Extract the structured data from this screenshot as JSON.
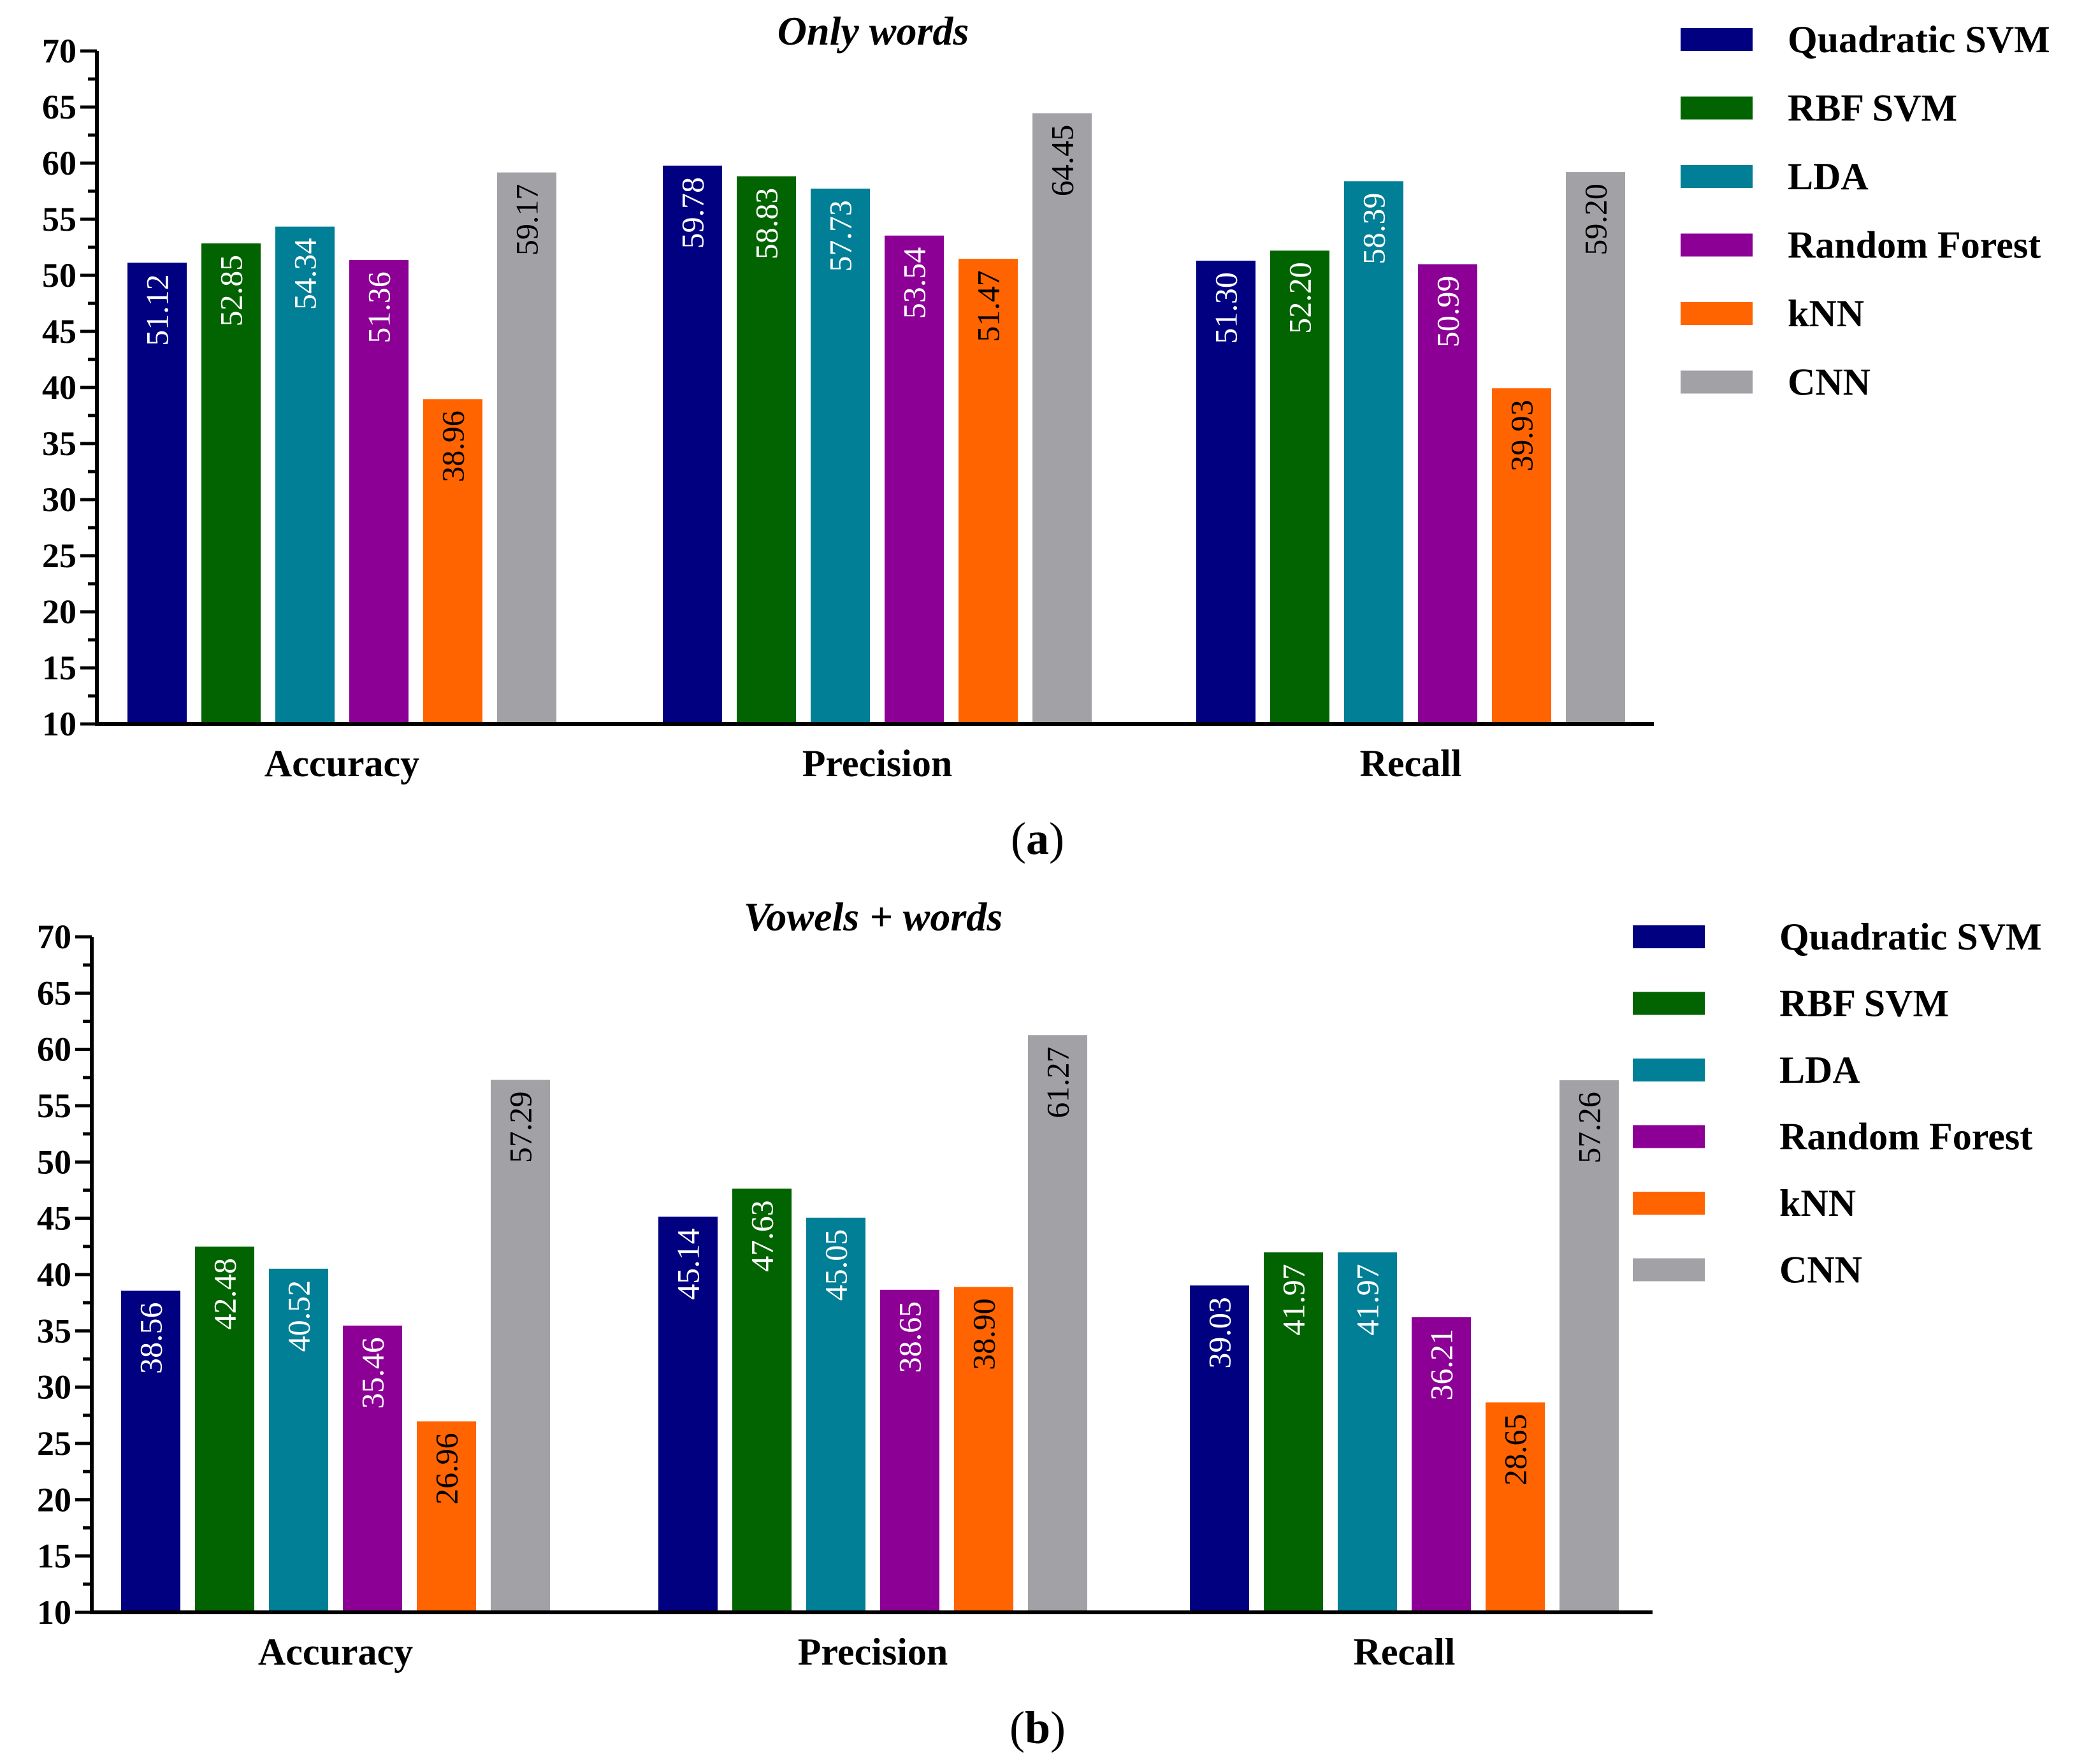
{
  "chart_data": [
    {
      "type": "bar",
      "panel": "a",
      "caption_letter": "a",
      "title": "Only words",
      "xlabel": "",
      "ylabel": "",
      "ylim": [
        10,
        70
      ],
      "ytick_step": 5,
      "categories": [
        "Accuracy",
        "Precision",
        "Recall"
      ],
      "series": [
        {
          "name": "Quadratic SVM",
          "color": "#010080",
          "label_color": "#ffffff",
          "values": [
            51.12,
            59.78,
            51.3
          ],
          "labels": [
            "51.12",
            "59.78",
            "51.30"
          ]
        },
        {
          "name": "RBF SVM",
          "color": "#016400",
          "label_color": "#ffffff",
          "values": [
            52.85,
            58.83,
            52.2
          ],
          "labels": [
            "52.85",
            "58.83",
            "52.20"
          ]
        },
        {
          "name": "LDA",
          "color": "#007f96",
          "label_color": "#ffffff",
          "values": [
            54.34,
            57.73,
            58.39
          ],
          "labels": [
            "54.34",
            "57.73",
            "58.39"
          ]
        },
        {
          "name": "Random Forest",
          "color": "#8c0096",
          "label_color": "#ffffff",
          "values": [
            51.36,
            53.54,
            50.99
          ],
          "labels": [
            "51.36",
            "53.54",
            "50.99"
          ]
        },
        {
          "name": "kNN",
          "color": "#ff6400",
          "label_color": "#000000",
          "values": [
            38.96,
            51.47,
            39.93
          ],
          "labels": [
            "38.96",
            "51.47",
            "39.93"
          ]
        },
        {
          "name": "CNN",
          "color": "#a2a2a6",
          "label_color": "#000000",
          "values": [
            59.17,
            64.45,
            59.2
          ],
          "labels": [
            "59.17",
            "64.45",
            "59.20"
          ]
        }
      ],
      "legend_position": "right"
    },
    {
      "type": "bar",
      "panel": "b",
      "caption_letter": "b",
      "title": "Vowels + words",
      "xlabel": "",
      "ylabel": "",
      "ylim": [
        10,
        70
      ],
      "ytick_step": 5,
      "categories": [
        "Accuracy",
        "Precision",
        "Recall"
      ],
      "series": [
        {
          "name": "Quadratic SVM",
          "color": "#010080",
          "label_color": "#ffffff",
          "values": [
            38.56,
            45.14,
            39.03
          ],
          "labels": [
            "38.56",
            "45.14",
            "39.03"
          ]
        },
        {
          "name": "RBF SVM",
          "color": "#016400",
          "label_color": "#ffffff",
          "values": [
            42.48,
            47.63,
            41.97
          ],
          "labels": [
            "42.48",
            "47.63",
            "41.97"
          ]
        },
        {
          "name": "LDA",
          "color": "#007f96",
          "label_color": "#ffffff",
          "values": [
            40.52,
            45.05,
            41.97
          ],
          "labels": [
            "40.52",
            "45.05",
            "41.97"
          ]
        },
        {
          "name": "Random Forest",
          "color": "#8c0096",
          "label_color": "#ffffff",
          "values": [
            35.46,
            38.65,
            36.21
          ],
          "labels": [
            "35.46",
            "38.65",
            "36.21"
          ]
        },
        {
          "name": "kNN",
          "color": "#ff6400",
          "label_color": "#000000",
          "values": [
            26.96,
            38.9,
            28.65
          ],
          "labels": [
            "26.96",
            "38.90",
            "28.65"
          ]
        },
        {
          "name": "CNN",
          "color": "#a2a2a6",
          "label_color": "#000000",
          "values": [
            57.29,
            61.27,
            57.26
          ],
          "labels": [
            "57.29",
            "61.27",
            "57.26"
          ]
        }
      ],
      "legend_position": "right"
    }
  ]
}
